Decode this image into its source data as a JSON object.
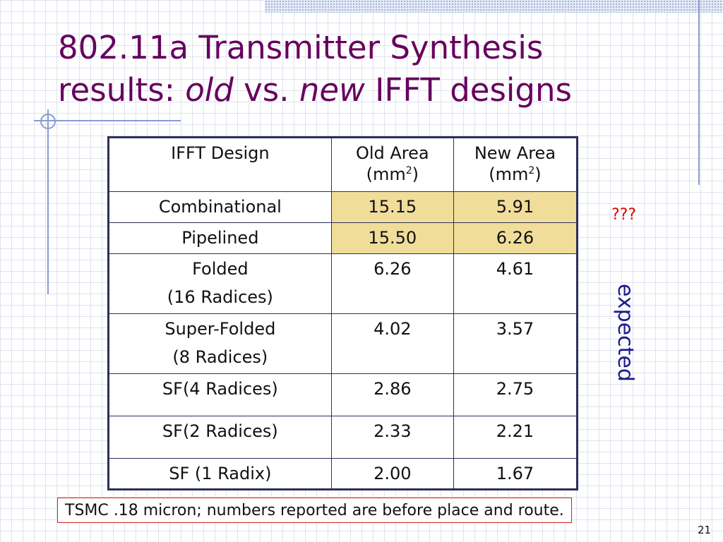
{
  "title": {
    "line1": "802.11a Transmitter Synthesis",
    "line2_prefix": "results: ",
    "line2_old": "old",
    "line2_vs": " vs. ",
    "line2_new": "new",
    "line2_suffix": " IFFT designs"
  },
  "table": {
    "headers": {
      "design": "IFFT Design",
      "old_area": "Old Area",
      "new_area": "New Area",
      "unit_open": "(mm",
      "unit_sup": "2",
      "unit_close": ")"
    },
    "rows": [
      {
        "design": "Combinational",
        "design2": "",
        "old": "15.15",
        "new": "5.91"
      },
      {
        "design": "Pipelined",
        "design2": "",
        "old": "15.50",
        "new": "6.26"
      },
      {
        "design": "Folded",
        "design2": "(16 Radices)",
        "old": "6.26",
        "new": "4.61"
      },
      {
        "design": "Super-Folded",
        "design2": "(8 Radices)",
        "old": "4.02",
        "new": "3.57"
      },
      {
        "design": "SF(4 Radices)",
        "design2": "",
        "old": "2.86",
        "new": "2.75"
      },
      {
        "design": "SF(2 Radices)",
        "design2": "",
        "old": "2.33",
        "new": "2.21"
      },
      {
        "design": "SF (1 Radix)",
        "design2": "",
        "old": "2.00",
        "new": "1.67"
      }
    ]
  },
  "annotations": {
    "question": "???",
    "expected": "expected"
  },
  "footnote": "TSMC .18 micron; numbers reported are before place and route.",
  "slide_number": "21",
  "colors": {
    "title": "#66005e",
    "highlight": "#f1dd9a",
    "question": "#e00000",
    "expected": "#1a1a8e",
    "footnote_border": "#d02020"
  }
}
